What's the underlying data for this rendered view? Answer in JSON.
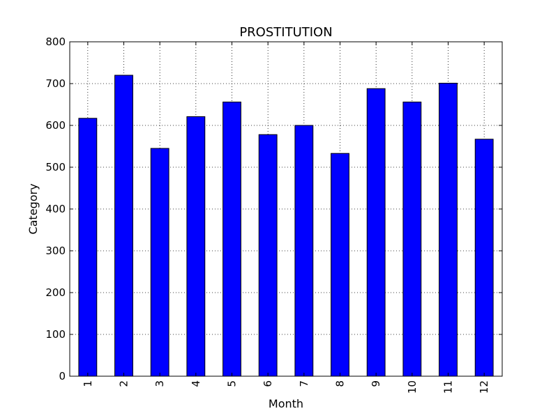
{
  "chart_data": {
    "type": "bar",
    "title": "PROSTITUTION",
    "xlabel": "Month",
    "ylabel": "Category",
    "categories": [
      "1",
      "2",
      "3",
      "4",
      "5",
      "6",
      "7",
      "8",
      "9",
      "10",
      "11",
      "12"
    ],
    "values": [
      617,
      720,
      545,
      621,
      656,
      578,
      600,
      533,
      688,
      656,
      701,
      567
    ],
    "ylim": [
      0,
      800
    ],
    "yticks": [
      0,
      100,
      200,
      300,
      400,
      500,
      600,
      700,
      800
    ],
    "grid": true,
    "bar_color": "#0000ff",
    "edge_color": "#000000",
    "legend": "none"
  }
}
